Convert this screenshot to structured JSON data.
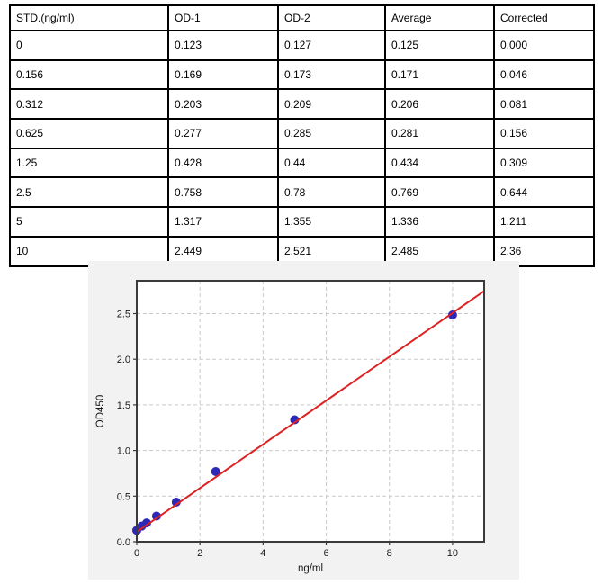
{
  "table": {
    "headers": [
      "STD.(ng/ml)",
      "OD-1",
      "OD-2",
      "Average",
      "Corrected"
    ],
    "rows": [
      [
        "0",
        "0.123",
        "0.127",
        "0.125",
        "0.000"
      ],
      [
        "0.156",
        "0.169",
        "0.173",
        "0.171",
        "0.046"
      ],
      [
        "0.312",
        "0.203",
        "0.209",
        "0.206",
        "0.081"
      ],
      [
        "0.625",
        "0.277",
        "0.285",
        "0.281",
        "0.156"
      ],
      [
        "1.25",
        "0.428",
        "0.44",
        "0.434",
        "0.309"
      ],
      [
        "2.5",
        "0.758",
        "0.78",
        "0.769",
        "0.644"
      ],
      [
        "5",
        "1.317",
        "1.355",
        "1.336",
        "1.211"
      ],
      [
        "10",
        "2.449",
        "2.521",
        "2.485",
        "2.36"
      ]
    ]
  },
  "chart_data": {
    "type": "scatter",
    "title": "",
    "xlabel": "ng/ml",
    "ylabel": "OD450",
    "xlim": [
      0,
      11
    ],
    "ylim": [
      0,
      2.86
    ],
    "xticks": {
      "values": [
        0,
        2,
        4,
        6,
        8,
        10
      ],
      "labels": [
        "0",
        "2",
        "4",
        "6",
        "8",
        "10"
      ]
    },
    "yticks": {
      "values": [
        0,
        0.5,
        1,
        1.5,
        2,
        2.5
      ],
      "labels": [
        "0.0",
        "0.5",
        "1.0",
        "1.5",
        "2.0",
        "2.5"
      ]
    },
    "grid": true,
    "legend": "none",
    "series": [
      {
        "name": "standard-points",
        "type": "scatter",
        "x": [
          0,
          0.156,
          0.312,
          0.625,
          1.25,
          2.5,
          5,
          10
        ],
        "y": [
          0.125,
          0.171,
          0.206,
          0.281,
          0.434,
          0.769,
          1.336,
          2.485
        ],
        "color": "#2e28b8",
        "marker_radius": 4.5
      },
      {
        "name": "fit-line",
        "type": "line",
        "x": [
          0,
          11
        ],
        "y": [
          0.108,
          2.747
        ],
        "color": "#dc2222",
        "line_width": 2
      }
    ],
    "colors": {
      "figure_bg": "#f2f2f2",
      "plot_bg": "#ffffff",
      "grid_color": "#c9c9c9",
      "spine_color": "#3a3a3a",
      "tick_label_color": "#1a1a1a",
      "table_border": "#000000"
    }
  }
}
